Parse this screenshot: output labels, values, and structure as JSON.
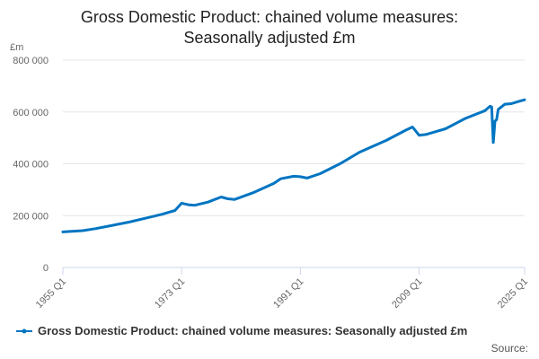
{
  "chart_data": {
    "type": "line",
    "title": "Gross Domestic Product: chained volume measures: Seasonally adjusted £m",
    "title_lines": [
      "Gross Domestic Product: chained volume measures:",
      "Seasonally adjusted £m"
    ],
    "ylabel": "£m",
    "xlabel": "",
    "ylim": [
      0,
      800000
    ],
    "yticks": [
      0,
      200000,
      400000,
      600000,
      800000
    ],
    "ytick_labels": [
      "0",
      "200 000",
      "400 000",
      "600 000",
      "800 000"
    ],
    "xlim": [
      1955.0,
      2025.0
    ],
    "xticks": [
      1955.0,
      1973.0,
      1991.0,
      2009.0,
      2025.0
    ],
    "xtick_labels": [
      "1955 Q1",
      "1973 Q1",
      "1991 Q1",
      "2009 Q1",
      "2025 Q1"
    ],
    "grid": true,
    "legend_position": "bottom",
    "source_label": "Source:",
    "series": [
      {
        "name": "Gross Domestic Product: chained volume measures: Seasonally adjusted £m",
        "color": "#0075c2",
        "x": [
          1955.0,
          1958.0,
          1960.0,
          1963.0,
          1965.0,
          1968.0,
          1970.0,
          1972.0,
          1973.0,
          1974.0,
          1975.0,
          1977.0,
          1979.0,
          1980.0,
          1981.0,
          1984.0,
          1987.0,
          1988.0,
          1990.0,
          1991.0,
          1992.0,
          1994.0,
          1997.0,
          2000.0,
          2004.0,
          2007.0,
          2008.0,
          2009.0,
          2010.0,
          2011.0,
          2013.0,
          2016.0,
          2019.0,
          2019.75,
          2020.0,
          2020.25,
          2020.5,
          2020.75,
          2021.0,
          2022.0,
          2023.0,
          2024.0,
          2025.0
        ],
        "values": [
          137000,
          142000,
          150000,
          165000,
          175000,
          193000,
          205000,
          220000,
          248000,
          242000,
          240000,
          252000,
          272000,
          265000,
          262000,
          290000,
          325000,
          342000,
          352000,
          350000,
          345000,
          362000,
          400000,
          445000,
          490000,
          530000,
          542000,
          510000,
          513000,
          520000,
          535000,
          575000,
          605000,
          622000,
          620000,
          482000,
          565000,
          570000,
          610000,
          630000,
          632000,
          640000,
          647000
        ]
      }
    ]
  }
}
